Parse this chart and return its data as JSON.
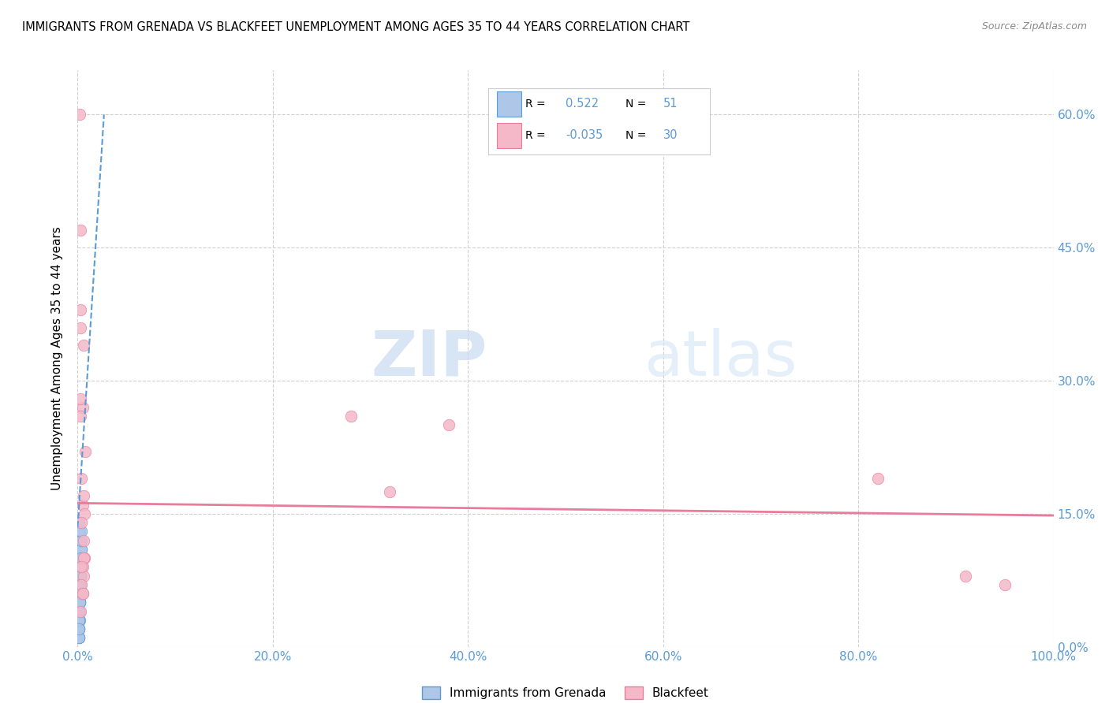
{
  "title": "IMMIGRANTS FROM GRENADA VS BLACKFEET UNEMPLOYMENT AMONG AGES 35 TO 44 YEARS CORRELATION CHART",
  "source": "Source: ZipAtlas.com",
  "ylabel": "Unemployment Among Ages 35 to 44 years",
  "xlim": [
    0,
    1.0
  ],
  "ylim": [
    0,
    0.65
  ],
  "xticks": [
    0.0,
    0.2,
    0.4,
    0.6,
    0.8,
    1.0
  ],
  "xticklabels": [
    "0.0%",
    "20.0%",
    "40.0%",
    "60.0%",
    "80.0%",
    "100.0%"
  ],
  "yticks": [
    0.0,
    0.15,
    0.3,
    0.45,
    0.6
  ],
  "yticklabels": [
    "0.0%",
    "15.0%",
    "30.0%",
    "45.0%",
    "60.0%"
  ],
  "legend_entries": [
    {
      "label": "Immigrants from Grenada",
      "R": "0.522",
      "N": "51",
      "color": "#aec6e8",
      "line_color": "#5b9bd5"
    },
    {
      "label": "Blackfeet",
      "R": "-0.035",
      "N": "30",
      "color": "#f4b8c8",
      "line_color": "#e87d9b"
    }
  ],
  "blue_scatter_x": [
    0.001,
    0.002,
    0.003,
    0.001,
    0.002,
    0.001,
    0.003,
    0.002,
    0.001,
    0.004,
    0.002,
    0.001,
    0.003,
    0.001,
    0.002,
    0.004,
    0.001,
    0.002,
    0.001,
    0.003,
    0.002,
    0.001,
    0.002,
    0.003,
    0.001,
    0.002,
    0.001,
    0.004,
    0.003,
    0.002,
    0.001,
    0.002,
    0.001,
    0.003,
    0.001,
    0.002,
    0.001,
    0.003,
    0.002,
    0.004,
    0.001,
    0.002,
    0.003,
    0.001,
    0.002,
    0.003,
    0.004,
    0.001,
    0.002,
    0.001,
    0.003
  ],
  "blue_scatter_y": [
    0.14,
    0.12,
    0.1,
    0.08,
    0.07,
    0.06,
    0.09,
    0.05,
    0.04,
    0.11,
    0.13,
    0.03,
    0.07,
    0.05,
    0.04,
    0.1,
    0.02,
    0.06,
    0.01,
    0.08,
    0.05,
    0.04,
    0.03,
    0.09,
    0.02,
    0.06,
    0.01,
    0.11,
    0.08,
    0.05,
    0.03,
    0.07,
    0.02,
    0.09,
    0.04,
    0.06,
    0.01,
    0.08,
    0.05,
    0.12,
    0.02,
    0.07,
    0.09,
    0.03,
    0.06,
    0.1,
    0.13,
    0.01,
    0.05,
    0.02,
    0.08
  ],
  "pink_scatter_x": [
    0.002,
    0.005,
    0.007,
    0.003,
    0.005,
    0.008,
    0.004,
    0.006,
    0.003,
    0.006,
    0.007,
    0.003,
    0.28,
    0.32,
    0.004,
    0.005,
    0.006,
    0.003,
    0.38,
    0.004,
    0.005,
    0.003,
    0.006,
    0.82,
    0.91,
    0.004,
    0.005,
    0.95,
    0.003,
    0.006
  ],
  "pink_scatter_y": [
    0.6,
    0.16,
    0.15,
    0.36,
    0.27,
    0.22,
    0.14,
    0.34,
    0.26,
    0.12,
    0.1,
    0.47,
    0.26,
    0.175,
    0.19,
    0.09,
    0.08,
    0.38,
    0.25,
    0.07,
    0.06,
    0.28,
    0.1,
    0.19,
    0.08,
    0.09,
    0.06,
    0.07,
    0.04,
    0.17
  ],
  "blue_trend_x": [
    0.0,
    0.027
  ],
  "blue_trend_y": [
    0.135,
    0.6
  ],
  "pink_trend_x": [
    0.0,
    1.0
  ],
  "pink_trend_y": [
    0.162,
    0.148
  ],
  "background_color": "#ffffff",
  "grid_color": "#d0d0d0",
  "watermark_zip": "ZIP",
  "watermark_atlas": "atlas",
  "marker_size": 110
}
